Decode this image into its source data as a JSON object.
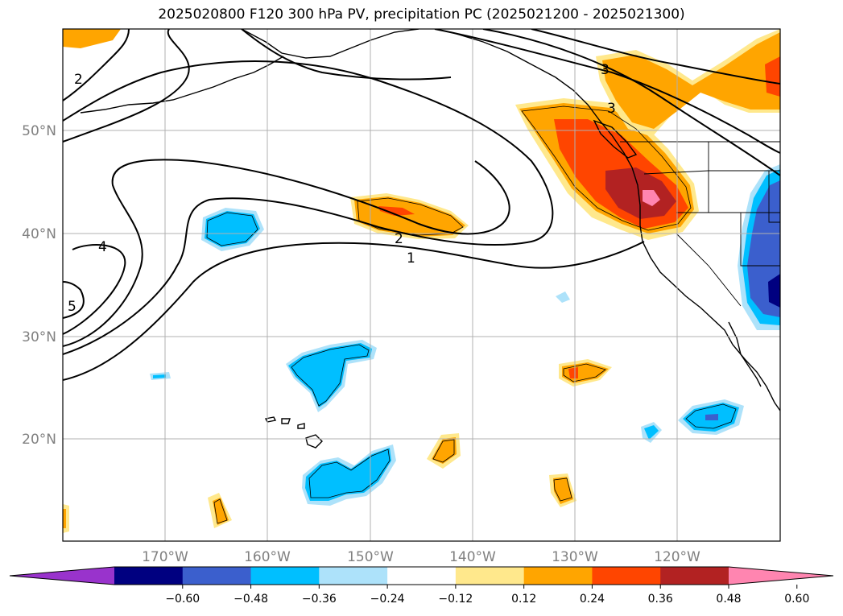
{
  "title": "2025020800 F120 300 hPa PV, precipitation PC (2025021200 - 2025021300)",
  "map": {
    "lat_labels": [
      "50°N",
      "40°N",
      "30°N",
      "20°N"
    ],
    "lon_labels": [
      "170°W",
      "160°W",
      "150°W",
      "140°W",
      "130°W",
      "120°W"
    ],
    "pv_contour_labels": [
      "1",
      "2",
      "3",
      "4",
      "5",
      "2",
      "3"
    ]
  },
  "colorbar": {
    "boundaries": [
      "−0.60",
      "−0.48",
      "−0.36",
      "−0.24",
      "−0.12",
      "0.12",
      "0.24",
      "0.36",
      "0.48",
      "0.60"
    ],
    "colors": [
      "#9933cc",
      "#000080",
      "#3b5fcd",
      "#00bfff",
      "#ade2fa",
      "#ffffff",
      "#ffe88c",
      "#ffa500",
      "#ff4500",
      "#b22222",
      "#ff85b0"
    ]
  }
}
